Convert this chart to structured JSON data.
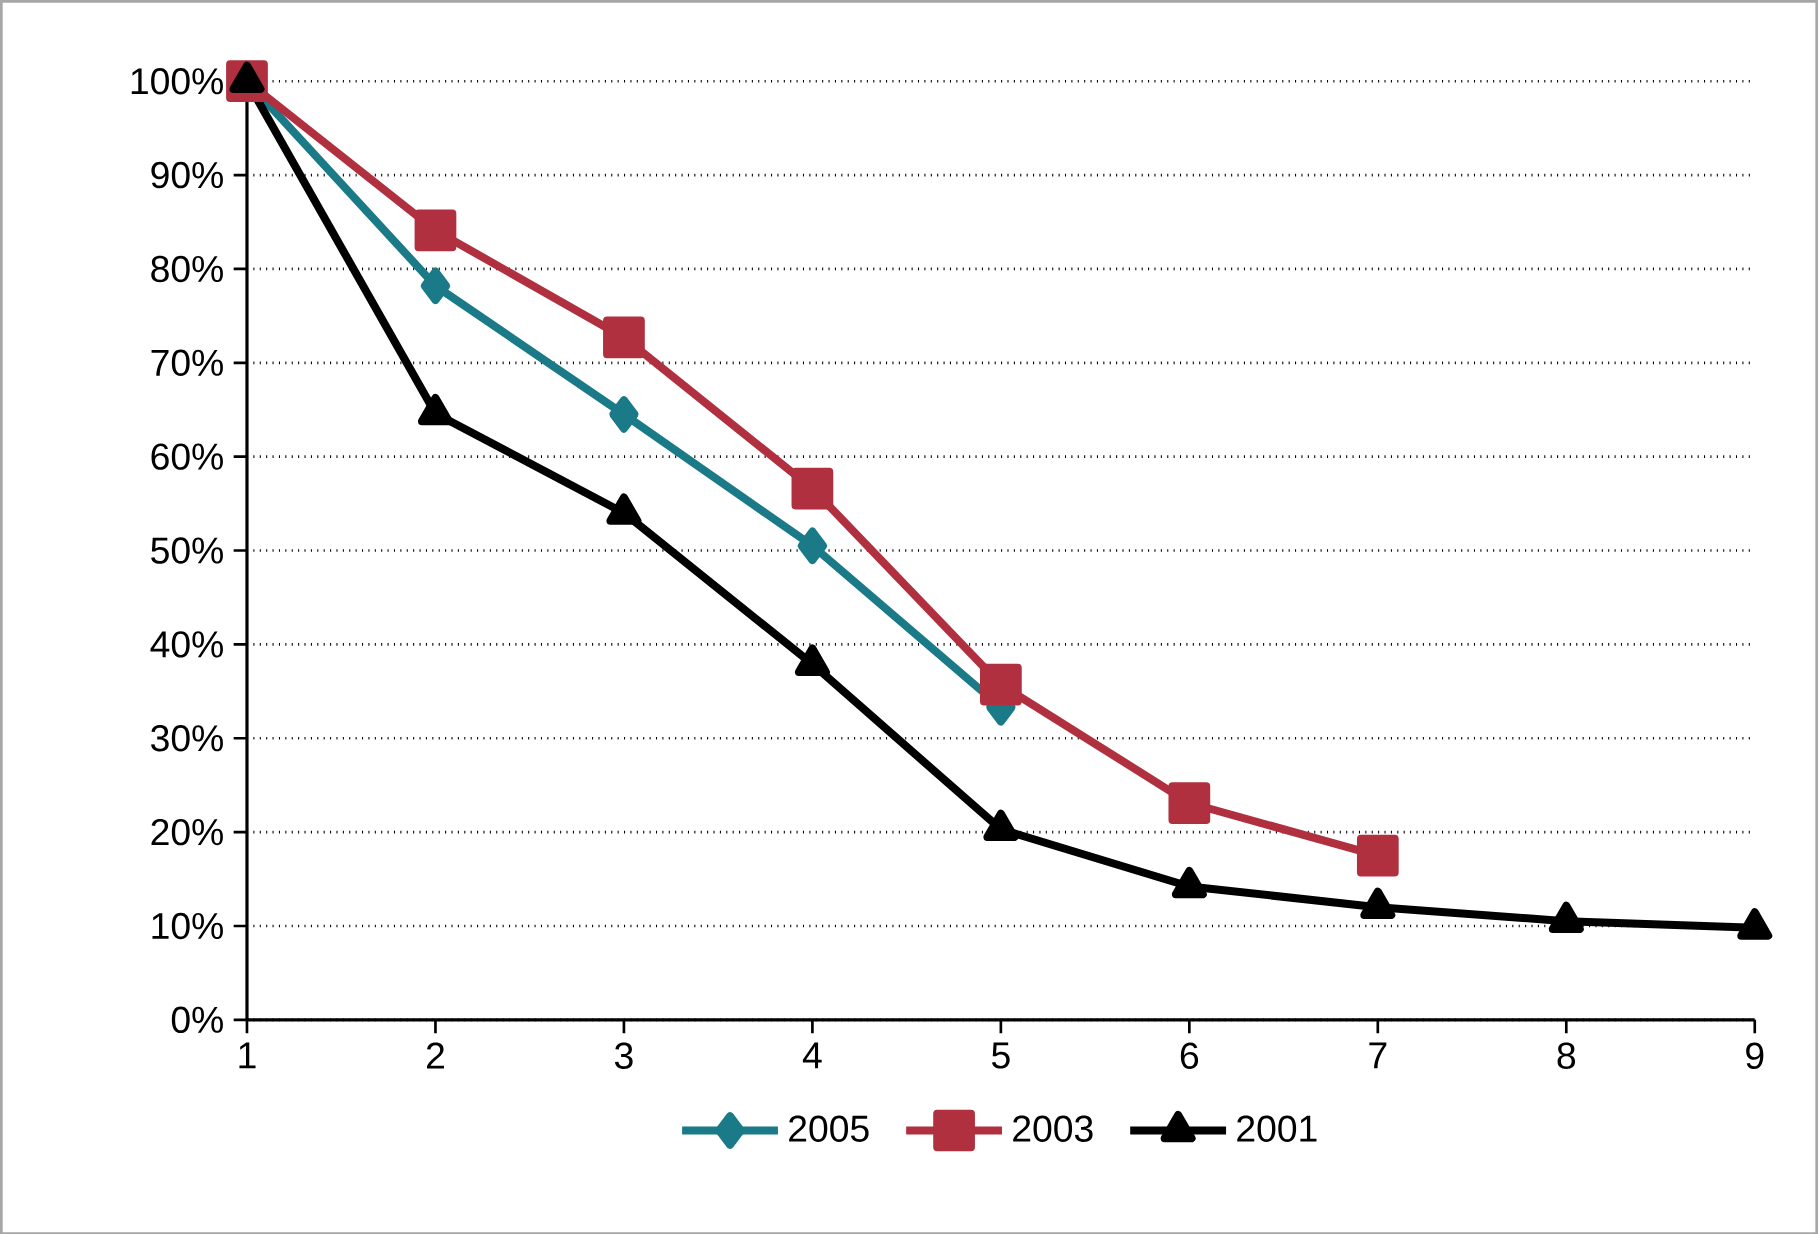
{
  "chart_data": {
    "type": "line",
    "x": [
      1,
      2,
      3,
      4,
      5,
      6,
      7,
      8,
      9
    ],
    "series": [
      {
        "name": "2005",
        "color": "#1a7a87",
        "marker": "diamond",
        "values": [
          100,
          78.2,
          64.5,
          50.5,
          33.3,
          null,
          null,
          null,
          null
        ]
      },
      {
        "name": "2003",
        "color": "#b0303f",
        "marker": "square",
        "values": [
          100,
          84.1,
          72.7,
          56.6,
          35.7,
          23.1,
          17.5,
          null,
          null
        ]
      },
      {
        "name": "2001",
        "color": "#000000",
        "marker": "triangle",
        "values": [
          100,
          64.6,
          54.0,
          37.9,
          20.3,
          14.2,
          12.0,
          10.5,
          9.8
        ]
      }
    ],
    "xlim": [
      1,
      9
    ],
    "xticks": [
      1,
      2,
      3,
      4,
      5,
      6,
      7,
      8,
      9
    ],
    "ylim": [
      0,
      100
    ],
    "yticks": [
      {
        "value": 0,
        "label": "0%"
      },
      {
        "value": 10,
        "label": "10%"
      },
      {
        "value": 20,
        "label": "20%"
      },
      {
        "value": 30,
        "label": "30%"
      },
      {
        "value": 40,
        "label": "40%"
      },
      {
        "value": 50,
        "label": "50%"
      },
      {
        "value": 60,
        "label": "60%"
      },
      {
        "value": 70,
        "label": "70%"
      },
      {
        "value": 80,
        "label": "80%"
      },
      {
        "value": 90,
        "label": "90%"
      },
      {
        "value": 100,
        "label": "100%"
      }
    ],
    "grid": "y",
    "legend": "bottom",
    "line_style": "solid"
  }
}
